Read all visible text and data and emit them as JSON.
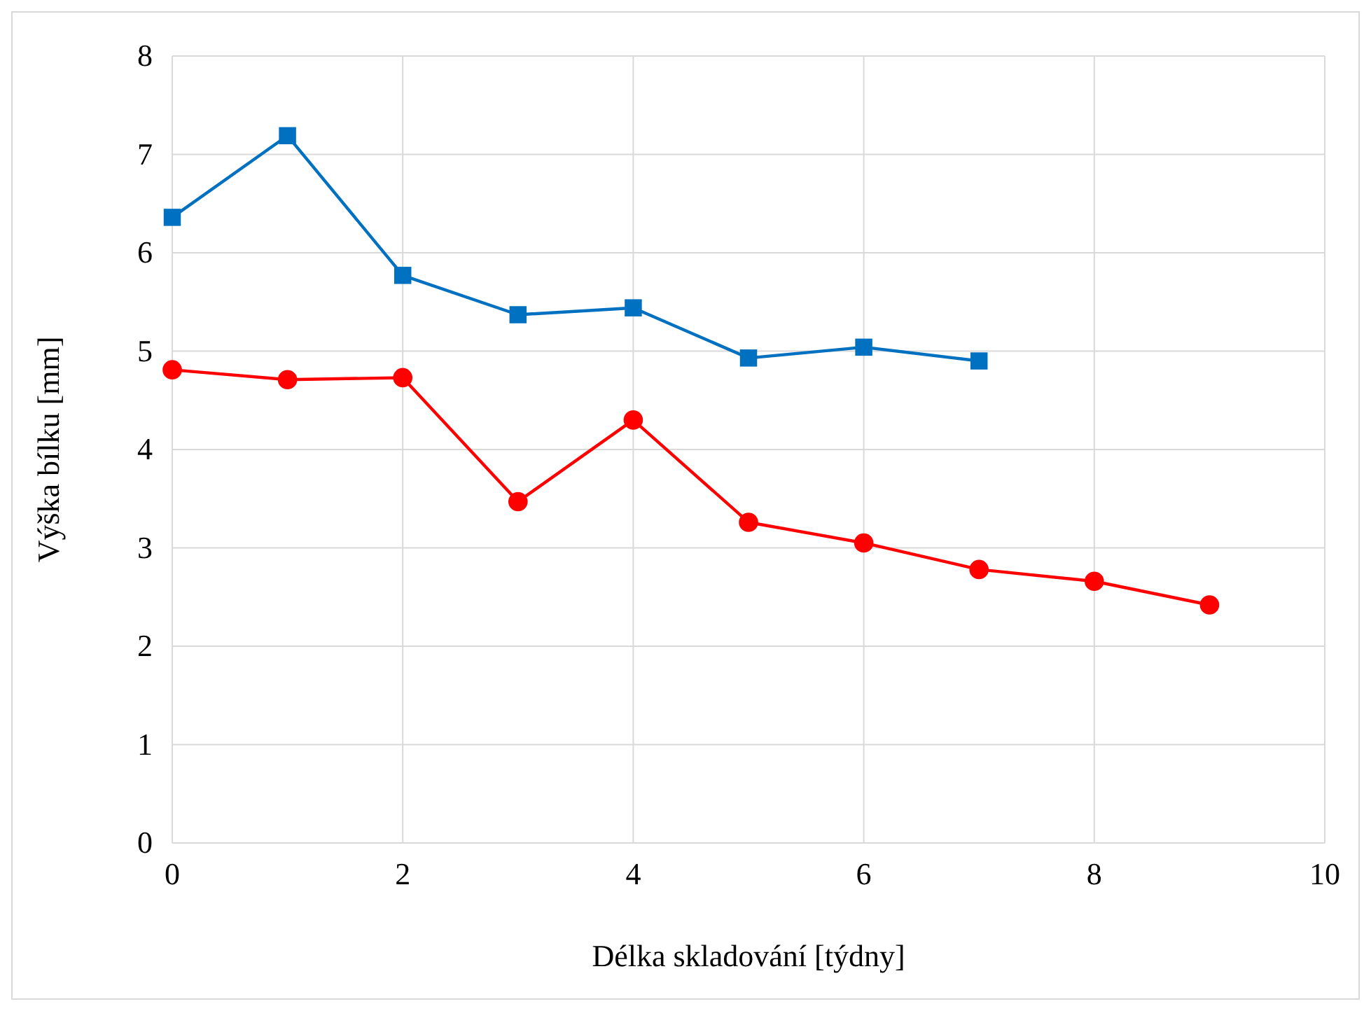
{
  "chart_data": {
    "type": "line",
    "xlabel": "Délka skladování [týdny]",
    "ylabel": "Výška bílku [mm]",
    "xlim": [
      0,
      10
    ],
    "xticks": [
      0,
      2,
      4,
      6,
      8,
      10
    ],
    "ylim": [
      0,
      8
    ],
    "yticks": [
      0,
      1,
      2,
      3,
      4,
      5,
      6,
      7,
      8
    ],
    "grid": true,
    "series": [
      {
        "color": "#0070c0",
        "marker": "square",
        "x": [
          0,
          1,
          2,
          3,
          4,
          5,
          6,
          7
        ],
        "values": [
          6.36,
          7.19,
          5.77,
          5.37,
          5.44,
          4.93,
          5.04,
          4.9
        ]
      },
      {
        "color": "#ff0000",
        "marker": "circle",
        "x": [
          0,
          1,
          2,
          3,
          4,
          5,
          6,
          7,
          8,
          9
        ],
        "values": [
          4.81,
          4.71,
          4.73,
          3.47,
          4.3,
          3.26,
          3.05,
          2.78,
          2.66,
          2.42
        ]
      }
    ]
  }
}
